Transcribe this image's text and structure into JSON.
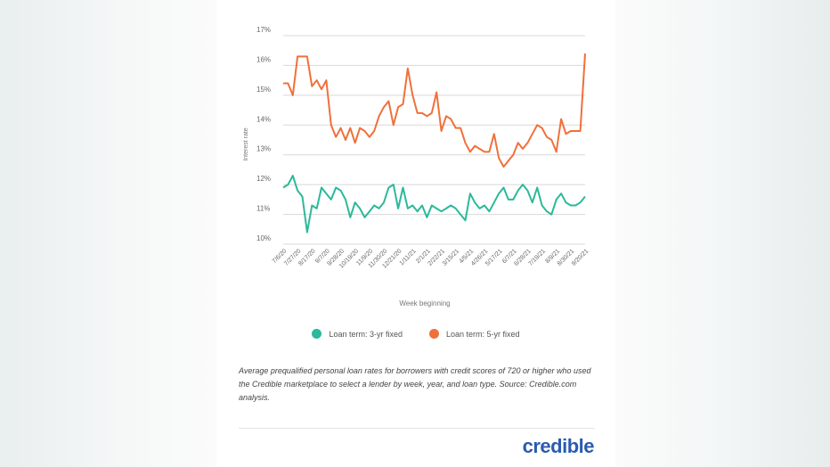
{
  "chart_data": {
    "type": "line",
    "title": "",
    "xlabel": "Week beginning",
    "ylabel": "Interest rate",
    "ylim": [
      10,
      17
    ],
    "yticks": [
      "10%",
      "11%",
      "12%",
      "13%",
      "14%",
      "15%",
      "16%",
      "17%"
    ],
    "grid": true,
    "legend_position": "bottom",
    "xtick_labels": [
      "7/6/20",
      "7/27/20",
      "8/17/20",
      "9/7/20",
      "9/28/20",
      "10/19/20",
      "11/9/20",
      "11/30/20",
      "12/21/20",
      "1/11/21",
      "2/1/21",
      "2/22/21",
      "3/15/21",
      "4/5/21",
      "4/26/21",
      "5/17/21",
      "6/7/21",
      "6/28/21",
      "7/19/21",
      "8/9/21",
      "8/30/21",
      "9/20/21"
    ],
    "series": [
      {
        "name": "Loan term: 3-yr fixed",
        "color": "#2bb99a",
        "values": [
          11.9,
          12.0,
          12.3,
          11.8,
          11.6,
          10.4,
          11.3,
          11.2,
          11.9,
          11.7,
          11.5,
          11.9,
          11.8,
          11.5,
          10.9,
          11.4,
          11.2,
          10.9,
          11.1,
          11.3,
          11.2,
          11.4,
          11.9,
          12.0,
          11.2,
          11.9,
          11.2,
          11.3,
          11.1,
          11.3,
          10.9,
          11.3,
          11.2,
          11.1,
          11.2,
          11.3,
          11.2,
          11.0,
          10.8,
          11.7,
          11.4,
          11.2,
          11.3,
          11.1,
          11.4,
          11.7,
          11.9,
          11.5,
          11.5,
          11.8,
          12.0,
          11.8,
          11.4,
          11.9,
          11.3,
          11.1,
          11.0,
          11.5,
          11.7,
          11.4,
          11.3,
          11.3,
          11.4,
          11.6
        ]
      },
      {
        "name": "Loan term: 5-yr fixed",
        "color": "#f0703a",
        "values": [
          15.4,
          15.4,
          15.0,
          16.3,
          16.3,
          16.3,
          15.3,
          15.5,
          15.2,
          15.5,
          14.0,
          13.6,
          13.9,
          13.5,
          13.9,
          13.4,
          13.9,
          13.8,
          13.6,
          13.8,
          14.3,
          14.6,
          14.8,
          14.0,
          14.6,
          14.7,
          15.9,
          15.0,
          14.4,
          14.4,
          14.3,
          14.4,
          15.1,
          13.8,
          14.3,
          14.2,
          13.9,
          13.9,
          13.4,
          13.1,
          13.3,
          13.2,
          13.1,
          13.1,
          13.7,
          12.9,
          12.6,
          12.8,
          13.0,
          13.4,
          13.2,
          13.4,
          13.7,
          14.0,
          13.9,
          13.6,
          13.5,
          13.1,
          14.2,
          13.7,
          13.8,
          13.8,
          13.8,
          16.4
        ]
      }
    ]
  },
  "caption": "Average prequalified personal loan rates for borrowers with credit scores of 720 or higher who used the Credible marketplace to select a lender by week, year, and loan type. Source: Credible.com analysis.",
  "logo": "credible"
}
